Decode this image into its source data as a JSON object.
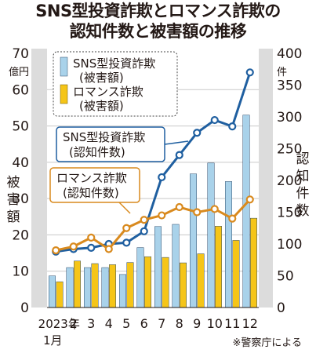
{
  "title_line1": "SNS型投資詐欺とロマンス詐欺の",
  "title_line2": "認知件数と被害額の推移",
  "source": "※警察庁による",
  "colors": {
    "sns_bar": "#a9d2ea",
    "romance_bar": "#f5c518",
    "sns_line": "#1f5fa0",
    "romance_line": "#d98a1e",
    "grid": "#c9c9c9",
    "axis_bg": "#dcdcdc"
  },
  "chart_data": {
    "type": "bar",
    "categories": [
      "2023年\n1月",
      "2",
      "3",
      "4",
      "5",
      "6",
      "7",
      "8",
      "9",
      "10",
      "11",
      "12"
    ],
    "left_axis": {
      "unit_top": "60",
      "unit": "億円",
      "label": "被害額",
      "ticks": [
        0,
        10,
        20,
        30,
        40,
        50,
        60,
        70
      ],
      "ylim": [
        0,
        70
      ]
    },
    "right_axis": {
      "unit": "件",
      "label": "認知件数",
      "ticks": [
        0,
        50,
        100,
        150,
        200,
        250,
        300,
        350,
        400
      ],
      "ylim": [
        0,
        400
      ]
    },
    "bar_series": [
      {
        "name": "SNS型投資詐欺(被害額)",
        "legend": [
          "SNS型投資詐欺",
          "(被害額)"
        ],
        "values": [
          8.7,
          11,
          11,
          11,
          9.1,
          16.5,
          22.3,
          22.9,
          36.8,
          39.8,
          34.7,
          53
        ]
      },
      {
        "name": "ロマンス詐欺(被害額)",
        "legend": [
          "ロマンス詐欺",
          "(被害額)"
        ],
        "values": [
          7.1,
          12.8,
          12.1,
          11.8,
          12.4,
          14,
          13.8,
          12.3,
          14.8,
          22.4,
          18.5,
          24.6
        ]
      }
    ],
    "line_series": [
      {
        "name": "SNS型投資詐欺(認知件数)",
        "callout": [
          "SNS型投資詐欺",
          "(認知件数)"
        ],
        "values": [
          88,
          92,
          94,
          100,
          102,
          120,
          205,
          240,
          275,
          295,
          285,
          370
        ]
      },
      {
        "name": "ロマンス詐欺(認知件数)",
        "callout": [
          "ロマンス詐欺",
          "(認知件数)"
        ],
        "values": [
          90,
          96,
          110,
          92,
          125,
          138,
          145,
          158,
          150,
          155,
          140,
          170
        ]
      }
    ]
  }
}
